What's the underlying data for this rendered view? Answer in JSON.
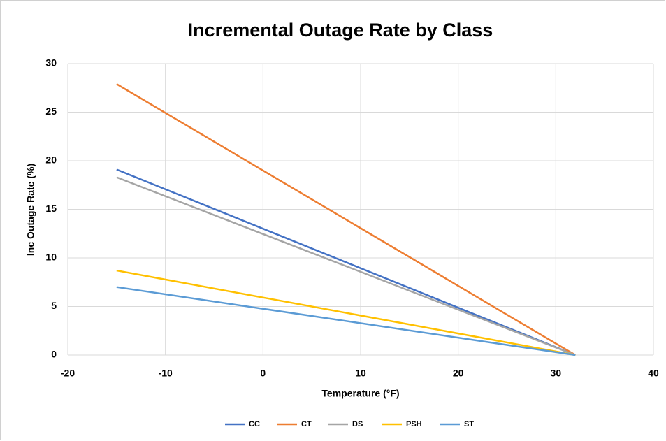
{
  "chart_data": {
    "type": "line",
    "title": "Incremental Outage Rate by Class",
    "xlabel": "Temperature (°F)",
    "ylabel": "Inc Outage Rate (%)",
    "x": [
      -15,
      32
    ],
    "series": [
      {
        "name": "CC",
        "color": "#4472c4",
        "values": [
          19.1,
          0
        ]
      },
      {
        "name": "CT",
        "color": "#ed7d31",
        "values": [
          27.9,
          0
        ]
      },
      {
        "name": "DS",
        "color": "#a5a5a5",
        "values": [
          18.3,
          0
        ]
      },
      {
        "name": "PSH",
        "color": "#ffc000",
        "values": [
          8.7,
          0
        ]
      },
      {
        "name": "ST",
        "color": "#5b9bd5",
        "values": [
          7.0,
          0
        ]
      }
    ],
    "xlim": [
      -20,
      40
    ],
    "xticks": [
      -20,
      -10,
      0,
      10,
      20,
      30,
      40
    ],
    "ylim": [
      0,
      30
    ],
    "yticks": [
      0,
      5,
      10,
      15,
      20,
      25,
      30
    ],
    "grid": true,
    "legend": "bottom"
  }
}
